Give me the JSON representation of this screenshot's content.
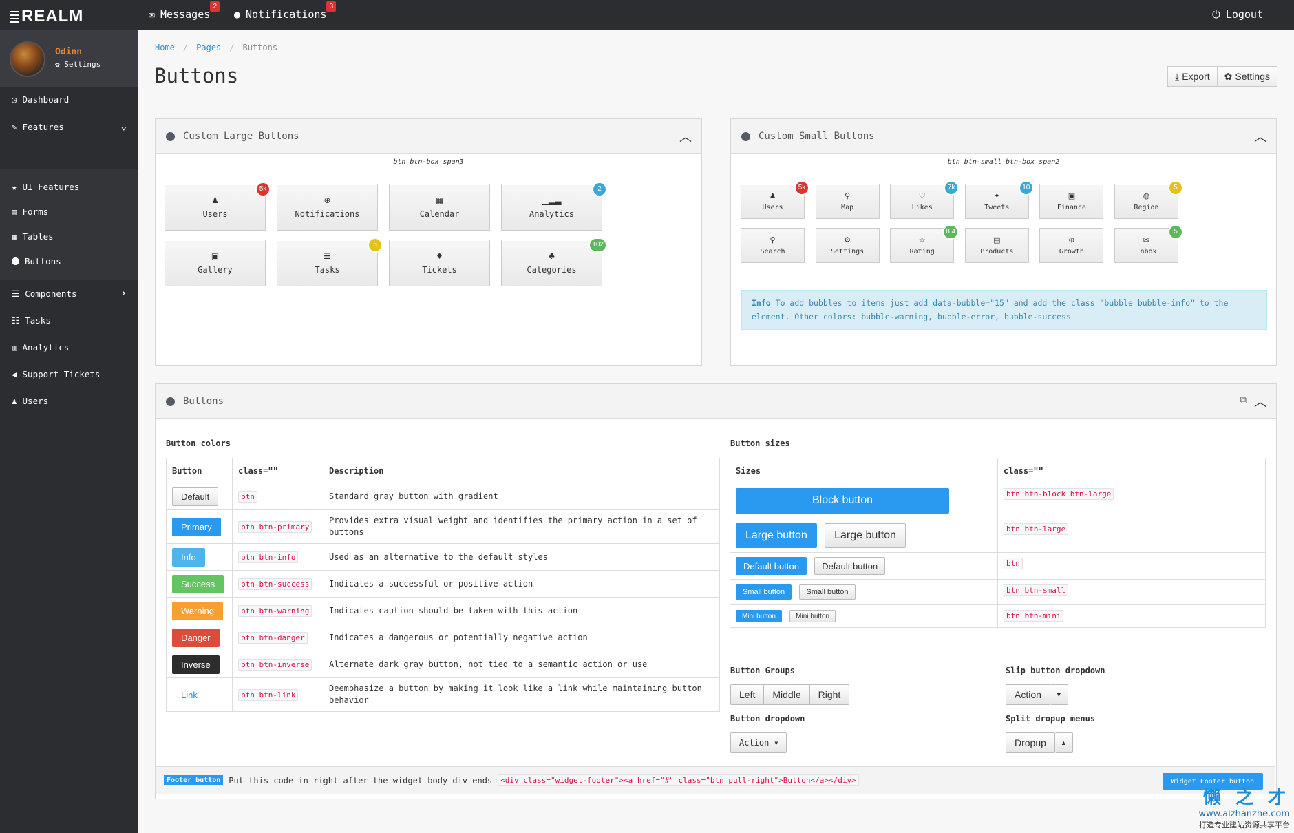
{
  "brand": "REALM",
  "topbar": {
    "messages_label": "Messages",
    "messages_count": "2",
    "notifications_label": "Notifications",
    "notifications_count": "3",
    "logout_label": "Logout"
  },
  "profile": {
    "name": "Odinn",
    "settings": "Settings"
  },
  "sidebar": {
    "items": [
      {
        "label": "Dashboard"
      },
      {
        "label": "Features"
      },
      {
        "label": "UI Features"
      },
      {
        "label": "Forms"
      },
      {
        "label": "Tables"
      },
      {
        "label": "Buttons"
      },
      {
        "label": "Components"
      },
      {
        "label": "Tasks"
      },
      {
        "label": "Analytics"
      },
      {
        "label": "Support Tickets"
      },
      {
        "label": "Users"
      }
    ]
  },
  "breadcrumb": [
    "Home",
    "Pages",
    "Buttons"
  ],
  "page_title": "Buttons",
  "header_buttons": {
    "export": "Export",
    "settings": "Settings"
  },
  "large_widget": {
    "title": "Custom Large Buttons",
    "caption": "btn btn-box span3",
    "buttons": [
      {
        "label": "Users",
        "bubble": "5k",
        "bubble_color": "#e0302f"
      },
      {
        "label": "Notifications",
        "bubble": "",
        "bubble_color": ""
      },
      {
        "label": "Calendar",
        "bubble": "",
        "bubble_color": ""
      },
      {
        "label": "Analytics",
        "bubble": "2",
        "bubble_color": "#3aa7d6"
      },
      {
        "label": "Gallery",
        "bubble": "",
        "bubble_color": ""
      },
      {
        "label": "Tasks",
        "bubble": "5",
        "bubble_color": "#e3c31b"
      },
      {
        "label": "Tickets",
        "bubble": "",
        "bubble_color": ""
      },
      {
        "label": "Categories",
        "bubble": "102",
        "bubble_color": "#5cb85c"
      }
    ]
  },
  "small_widget": {
    "title": "Custom Small Buttons",
    "caption": "btn btn-small btn-box span2",
    "buttons": [
      {
        "label": "Users",
        "bubble": "5k",
        "bubble_color": "#e0302f"
      },
      {
        "label": "Map",
        "bubble": "",
        "bubble_color": ""
      },
      {
        "label": "Likes",
        "bubble": "7k",
        "bubble_color": "#3aa7d6"
      },
      {
        "label": "Tweets",
        "bubble": "10",
        "bubble_color": "#3aa7d6"
      },
      {
        "label": "Finance",
        "bubble": "",
        "bubble_color": ""
      },
      {
        "label": "Region",
        "bubble": "5",
        "bubble_color": "#e3c31b"
      },
      {
        "label": "Search",
        "bubble": "",
        "bubble_color": ""
      },
      {
        "label": "Settings",
        "bubble": "",
        "bubble_color": ""
      },
      {
        "label": "Rating",
        "bubble": "8.4",
        "bubble_color": "#5cb85c"
      },
      {
        "label": "Products",
        "bubble": "",
        "bubble_color": ""
      },
      {
        "label": "Growth",
        "bubble": "",
        "bubble_color": ""
      },
      {
        "label": "Inbox",
        "bubble": "5",
        "bubble_color": "#5cb85c"
      }
    ],
    "info_label": "Info",
    "info_text": "To add bubbles to items just add data-bubble=\"15\" and add the class \"bubble bubble-info\" to the element. Other colors: bubble-warning, bubble-error, bubble-success"
  },
  "buttons_widget": {
    "title": "Buttons",
    "colors_title": "Button colors",
    "colors_headers": [
      "Button",
      "class=\"\"",
      "Description"
    ],
    "colors_rows": [
      {
        "label": "Default",
        "class": "btn",
        "desc": "Standard gray button with gradient"
      },
      {
        "label": "Primary",
        "class": "btn btn-primary",
        "desc": "Provides extra visual weight and identifies the primary action in a set of buttons"
      },
      {
        "label": "Info",
        "class": "btn btn-info",
        "desc": "Used as an alternative to the default styles"
      },
      {
        "label": "Success",
        "class": "btn btn-success",
        "desc": "Indicates a successful or positive action"
      },
      {
        "label": "Warning",
        "class": "btn btn-warning",
        "desc": "Indicates caution should be taken with this action"
      },
      {
        "label": "Danger",
        "class": "btn btn-danger",
        "desc": "Indicates a dangerous or potentially negative action"
      },
      {
        "label": "Inverse",
        "class": "btn btn-inverse",
        "desc": "Alternate dark gray button, not tied to a semantic action or use"
      },
      {
        "label": "Link",
        "class": "btn btn-link",
        "desc": "Deemphasize a button by making it look like a link while maintaining button behavior"
      }
    ],
    "sizes_title": "Button sizes",
    "sizes_headers": [
      "Sizes",
      "class=\"\""
    ],
    "sizes_rows": [
      {
        "primary": "Block button",
        "default": "",
        "class": "btn btn-block btn-large"
      },
      {
        "primary": "Large button",
        "default": "Large button",
        "class": "btn btn-large"
      },
      {
        "primary": "Default button",
        "default": "Default button",
        "class": "btn"
      },
      {
        "primary": "Small button",
        "default": "Small button",
        "class": "btn btn-small"
      },
      {
        "primary": "Mini button",
        "default": "Mini button",
        "class": "btn btn-mini"
      }
    ],
    "groups_title": "Button Groups",
    "groups": [
      "Left",
      "Middle",
      "Right"
    ],
    "slip_title": "Slip button dropdown",
    "slip_label": "Action",
    "dropdown_title": "Button dropdown",
    "dropdown_label": "Action",
    "split_title": "Split dropup menus",
    "split_label": "Dropup",
    "footer_label": "Footer button",
    "footer_text": "Put this code in right after the widget-body div ends",
    "footer_code": "<div class=\"widget-footer\"><a href=\"#\" class=\"btn pull-right\">Button</a></div>",
    "footer_button": "Widget Footer button"
  },
  "watermark": {
    "brand": "懒 之 才",
    "url": "www.aizhanzhe.com",
    "slogan": "打造专业建站资源共享平台"
  },
  "colors": {
    "accent": "#2a9af0",
    "sidebar_bg": "#2b2d31",
    "profile_name": "#e9892b"
  }
}
